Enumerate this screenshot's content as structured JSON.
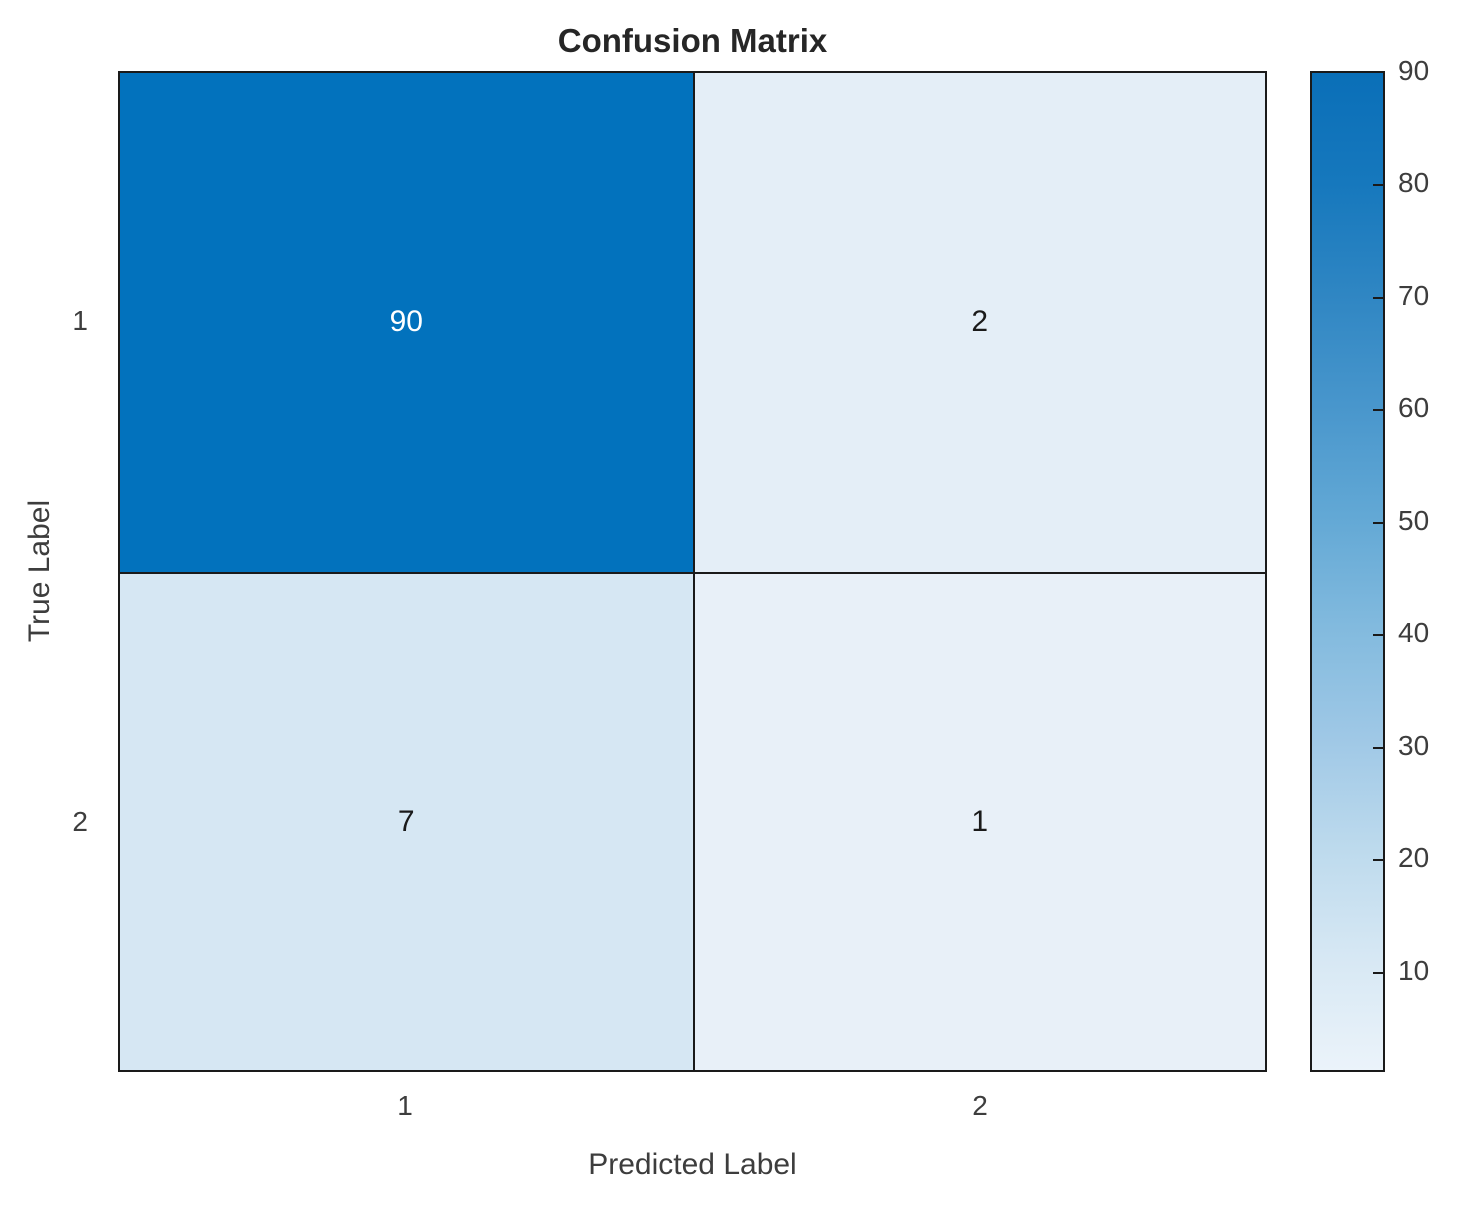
{
  "title": "Confusion Matrix",
  "axes": {
    "x_label": "Predicted Label",
    "y_label": "True Label",
    "x_ticks": [
      "1",
      "2"
    ],
    "y_ticks": [
      "1",
      "2"
    ]
  },
  "cells": [
    {
      "row": "1",
      "col": "1",
      "value": "90",
      "bg": "#0272bd",
      "fg": "#ffffff"
    },
    {
      "row": "1",
      "col": "2",
      "value": "2",
      "bg": "#e4eef7",
      "fg": "#1a1a1a"
    },
    {
      "row": "2",
      "col": "1",
      "value": "7",
      "bg": "#d6e7f3",
      "fg": "#1a1a1a"
    },
    {
      "row": "2",
      "col": "2",
      "value": "1",
      "bg": "#e8f0f8",
      "fg": "#1a1a1a"
    }
  ],
  "colorbar": {
    "min": 1,
    "max": 90,
    "ticks": [
      10,
      20,
      30,
      40,
      50,
      60,
      70,
      80,
      90
    ],
    "gradient_top": "#0a6fb8",
    "gradient_stops": [
      "#ebf3fa",
      "#d7e8f4",
      "#bddaed",
      "#9fc8e6",
      "#82bade",
      "#62a8d5",
      "#4896cc",
      "#2f86c3",
      "#1678bd",
      "#0a6fb8"
    ]
  },
  "chart_data": {
    "type": "heatmap",
    "title": "Confusion Matrix",
    "xlabel": "Predicted Label",
    "ylabel": "True Label",
    "x": [
      "1",
      "2"
    ],
    "y": [
      "1",
      "2"
    ],
    "values": [
      [
        90,
        2
      ],
      [
        7,
        1
      ]
    ],
    "colormap": "Blues",
    "clim": [
      1,
      90
    ],
    "colorbar_ticks": [
      10,
      20,
      30,
      40,
      50,
      60,
      70,
      80,
      90
    ],
    "legend_position": "right-colorbar",
    "grid": false
  }
}
